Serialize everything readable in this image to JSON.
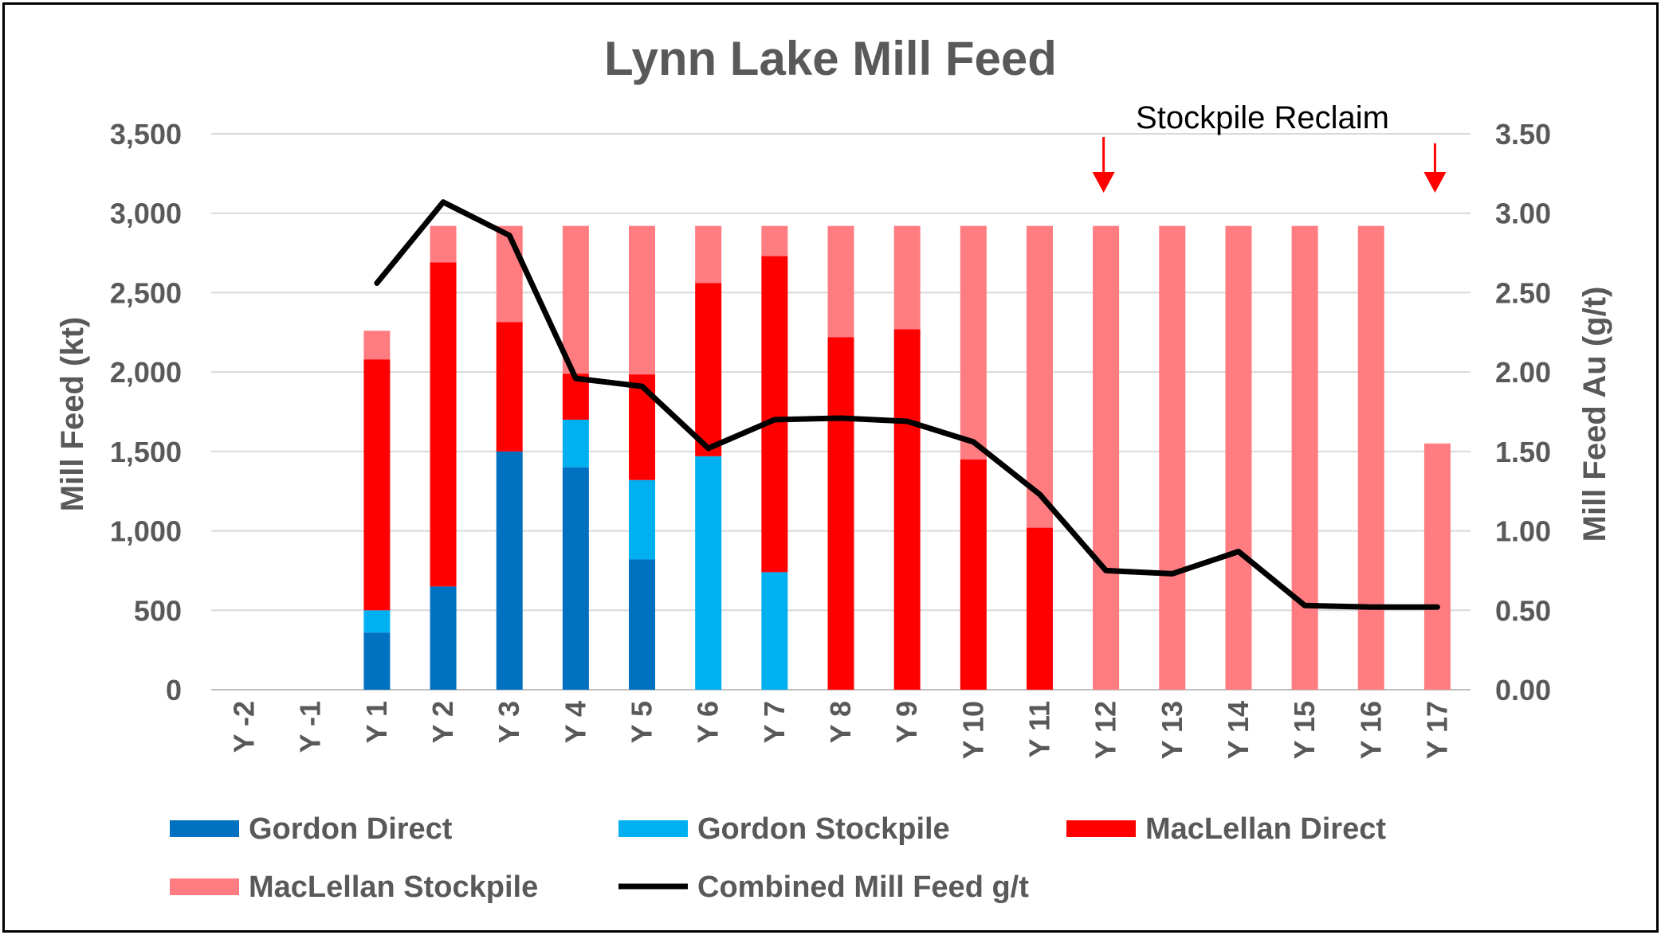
{
  "chart_data": {
    "type": "bar",
    "title": "Lynn Lake Mill Feed",
    "ylabel": "Mill Feed (kt)",
    "y2label": "Mill Feed Au (g/t)",
    "ylim": [
      0,
      3500
    ],
    "y2lim": [
      0,
      3.5
    ],
    "yticks": [
      "0",
      "500",
      "1,000",
      "1,500",
      "2,000",
      "2,500",
      "3,000",
      "3,500"
    ],
    "y2ticks": [
      "0.00",
      "0.50",
      "1.00",
      "1.50",
      "2.00",
      "2.50",
      "3.00",
      "3.50"
    ],
    "categories": [
      "Y -2",
      "Y -1",
      "Y 1",
      "Y 2",
      "Y 3",
      "Y 4",
      "Y 5",
      "Y 6",
      "Y 7",
      "Y 8",
      "Y 9",
      "Y 10",
      "Y 11",
      "Y 12",
      "Y 13",
      "Y 14",
      "Y 15",
      "Y 16",
      "Y 17"
    ],
    "stacked": true,
    "series": [
      {
        "name": "Gordon Direct",
        "color": "#0070c0",
        "values": [
          0,
          0,
          360,
          650,
          1500,
          1400,
          820,
          0,
          0,
          0,
          0,
          0,
          0,
          0,
          0,
          0,
          0,
          0,
          0
        ]
      },
      {
        "name": "Gordon Stockpile",
        "color": "#00b0f0",
        "values": [
          0,
          0,
          140,
          0,
          0,
          300,
          500,
          1470,
          740,
          0,
          0,
          0,
          0,
          0,
          0,
          0,
          0,
          0,
          0
        ]
      },
      {
        "name": "MacLellan Direct",
        "color": "#ff0000",
        "values": [
          0,
          0,
          1580,
          2040,
          815,
          290,
          665,
          1090,
          1990,
          2220,
          2270,
          1450,
          1020,
          0,
          0,
          0,
          0,
          0,
          0
        ]
      },
      {
        "name": "MacLellan Stockpile",
        "color": "#ff7c80",
        "values": [
          0,
          0,
          180,
          230,
          605,
          930,
          935,
          360,
          190,
          700,
          650,
          1470,
          1900,
          2920,
          2920,
          2920,
          2920,
          2920,
          1550
        ]
      }
    ],
    "line_series": {
      "name": "Combined Mill Feed g/t",
      "color": "#000000",
      "axis": "right",
      "values": [
        null,
        null,
        2.56,
        3.07,
        2.86,
        1.96,
        1.91,
        1.52,
        1.7,
        1.71,
        1.69,
        1.56,
        1.23,
        0.75,
        0.73,
        0.87,
        0.53,
        0.52,
        0.52
      ]
    },
    "annotation": {
      "text": "Stockpile Reclaim",
      "arrow_categories": [
        "Y 12",
        "Y 17"
      ],
      "arrow_color": "#ff0000"
    },
    "legend_position": "bottom",
    "grid": true
  }
}
